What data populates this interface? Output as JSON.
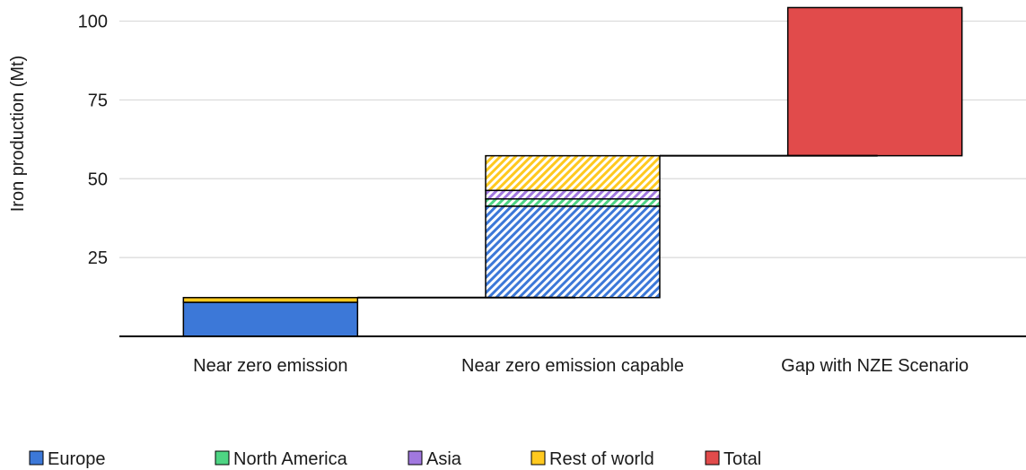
{
  "chart_data": {
    "type": "waterfall",
    "ylabel": "Iron production (Mt)",
    "ylim": [
      0,
      105
    ],
    "yticks": [
      25,
      50,
      75,
      100
    ],
    "grid": "horizontal",
    "legend_position": "bottom",
    "categories": [
      "Near zero emission",
      "Near zero emission capable",
      "Gap with NZE Scenario"
    ],
    "series": [
      {
        "name": "Europe",
        "color": "#3C78D8",
        "values": [
          10.8,
          29.0,
          0
        ]
      },
      {
        "name": "North America",
        "color": "#4ED483",
        "values": [
          0,
          2.3,
          0
        ]
      },
      {
        "name": "Asia",
        "color": "#A178DF",
        "values": [
          0,
          2.7,
          0
        ]
      },
      {
        "name": "Rest of world",
        "color": "#FFC91F",
        "values": [
          1.5,
          11.0,
          0
        ]
      },
      {
        "name": "Total",
        "color": "#E14B4B",
        "values": [
          0,
          0,
          47.0
        ]
      }
    ],
    "bases": [
      0,
      12.3,
      57.3
    ],
    "hatched": [
      false,
      true,
      false
    ],
    "connectors": [
      12.3,
      57.3
    ]
  }
}
